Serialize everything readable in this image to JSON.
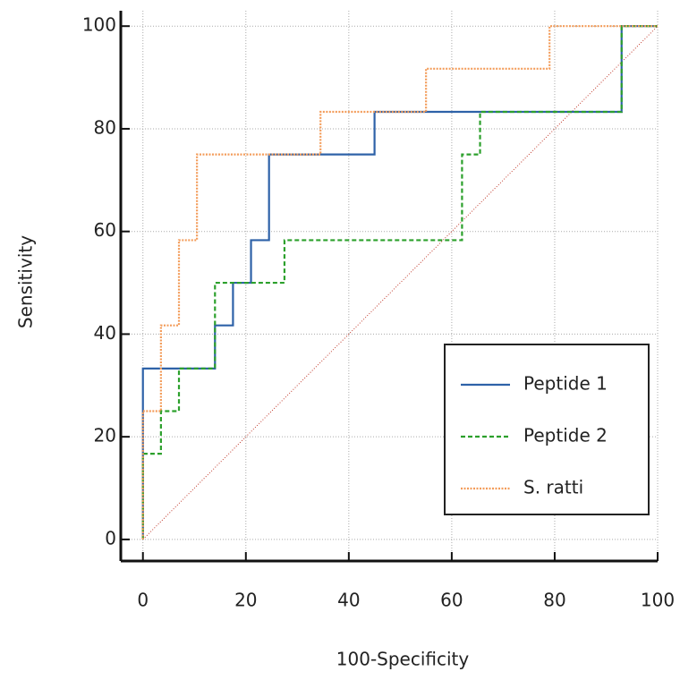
{
  "chart_data": {
    "type": "line",
    "x_label": "100-Specificity",
    "y_label": "Sensitivity",
    "xlim": [
      -4.3,
      100
    ],
    "ylim": [
      -4.2,
      103
    ],
    "xticks": [
      0,
      20,
      40,
      60,
      80,
      100
    ],
    "yticks": [
      0,
      20,
      40,
      60,
      80,
      100
    ],
    "grid": true,
    "legend": "lower right",
    "series": [
      {
        "name": "Peptide 1",
        "color": "#2e62a8",
        "dash": "solid",
        "x": [
          0,
          0,
          14,
          14,
          17.5,
          17.5,
          21,
          21,
          24.5,
          24.5,
          45,
          45,
          93,
          93,
          100
        ],
        "values": [
          0,
          33.3,
          33.3,
          41.7,
          41.7,
          50,
          50,
          58.3,
          58.3,
          75,
          75,
          83.3,
          83.3,
          100,
          100
        ]
      },
      {
        "name": "Peptide 2",
        "color": "#2ca02c",
        "dash": "dashed",
        "x": [
          0,
          0,
          3.5,
          3.5,
          7,
          7,
          14,
          14,
          27.5,
          27.5,
          62,
          62,
          65.5,
          65.5,
          93,
          93,
          100
        ],
        "values": [
          0,
          16.7,
          16.7,
          25,
          25,
          33.3,
          33.3,
          50,
          50,
          58.3,
          58.3,
          75,
          75,
          83.3,
          83.3,
          100,
          100
        ]
      },
      {
        "name": "S. ratti",
        "color": "#f39c5a",
        "dash": "dotted",
        "x": [
          0,
          0,
          3.5,
          3.5,
          7,
          7,
          10.5,
          10.5,
          34.5,
          34.5,
          55,
          55,
          79,
          79,
          100
        ],
        "values": [
          0,
          25,
          25,
          41.7,
          41.7,
          58.3,
          58.3,
          75,
          75,
          83.3,
          83.3,
          91.7,
          91.7,
          100,
          100
        ]
      }
    ],
    "reference_line": {
      "color": "#c0392b",
      "x": [
        0,
        100
      ],
      "values": [
        0,
        100
      ]
    }
  }
}
